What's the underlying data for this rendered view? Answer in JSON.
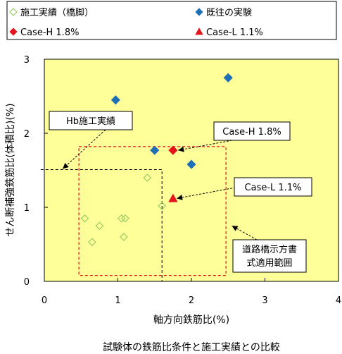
{
  "chart_data": {
    "type": "scatter",
    "caption": "試験体の鉄筋比条件と施工実績との比較",
    "xlabel": "軸方向鉄筋比(%)",
    "ylabel": "せん断補強鉄筋比(体積比)(%)",
    "xlim": [
      0,
      4
    ],
    "ylim": [
      0,
      3
    ],
    "x_ticks": [
      "0",
      "1",
      "2",
      "3",
      "4"
    ],
    "y_ticks": [
      "0",
      "1",
      "2",
      "3"
    ],
    "grid": false,
    "plot_background": "#ffff99",
    "legend_position": "top",
    "series": [
      {
        "name": "施工実績（橋脚）",
        "marker": "open-diamond",
        "color": "#99cc66",
        "points": [
          [
            0.55,
            0.85
          ],
          [
            0.75,
            0.75
          ],
          [
            1.05,
            0.85
          ],
          [
            1.1,
            0.85
          ],
          [
            0.65,
            0.53
          ],
          [
            1.08,
            0.6
          ],
          [
            1.4,
            1.4
          ],
          [
            1.6,
            1.02
          ]
        ]
      },
      {
        "name": "既往の実験",
        "marker": "filled-diamond",
        "color": "#1f6fb7",
        "points": [
          [
            0.97,
            2.45
          ],
          [
            2.5,
            2.75
          ],
          [
            1.5,
            1.77
          ],
          [
            2.0,
            1.58
          ]
        ]
      },
      {
        "name": "Case-H 1.8%",
        "marker": "filled-diamond",
        "color": "#e3141b",
        "points": [
          [
            1.75,
            1.77
          ]
        ]
      },
      {
        "name": "Case-L 1.1%",
        "marker": "filled-triangle",
        "color": "#e3141b",
        "points": [
          [
            1.75,
            1.12
          ]
        ]
      }
    ],
    "regions": [
      {
        "label": "Hb施工実績",
        "style": "black-dashed",
        "x": [
          -0.05,
          1.6
        ],
        "y": [
          0,
          1.51
        ]
      },
      {
        "label": "道路橋示方書式適用範囲",
        "style": "red-dashed",
        "x": [
          0.47,
          2.47
        ],
        "y": [
          0.08,
          1.82
        ]
      }
    ],
    "annotations": [
      {
        "text": "Hb施工実績",
        "points_to": [
          0.25,
          1.52
        ]
      },
      {
        "text": "Case-H 1.8%",
        "points_to": [
          1.82,
          1.77
        ]
      },
      {
        "text": "Case-L 1.1%",
        "points_to": [
          1.8,
          1.12
        ]
      },
      {
        "text": "道路橋示方書\n式適用範囲",
        "points_to": [
          2.55,
          0.75
        ]
      }
    ]
  }
}
